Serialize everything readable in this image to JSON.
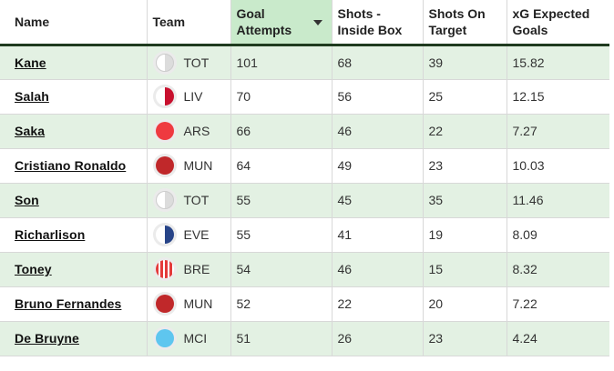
{
  "headers": {
    "name": "Name",
    "team": "Team",
    "goal_attempts": "Goal Attempts",
    "shots_inside_box": "Shots - Inside Box",
    "shots_on_target": "Shots On Target",
    "xg": "xG Expected Goals"
  },
  "sorted_column": "goal_attempts",
  "sort_direction": "descending",
  "rows": [
    {
      "name": "Kane",
      "team": "TOT",
      "badge": "tot-badge-icon",
      "badge_colors": [
        "#ffffff",
        "#dcdcdc"
      ],
      "goal_attempts": "101",
      "shots_inside_box": "68",
      "shots_on_target": "39",
      "xg": "15.82"
    },
    {
      "name": "Salah",
      "team": "LIV",
      "badge": "liv-badge-icon",
      "badge_colors": [
        "#ffffff",
        "#c8102e"
      ],
      "goal_attempts": "70",
      "shots_inside_box": "56",
      "shots_on_target": "25",
      "xg": "12.15"
    },
    {
      "name": "Saka",
      "team": "ARS",
      "badge": "ars-badge-icon",
      "badge_colors": [
        "#ef3a40"
      ],
      "goal_attempts": "66",
      "shots_inside_box": "46",
      "shots_on_target": "22",
      "xg": "7.27"
    },
    {
      "name": "Cristiano Ronaldo",
      "team": "MUN",
      "badge": "mun-badge-icon",
      "badge_colors": [
        "#c0282a"
      ],
      "goal_attempts": "64",
      "shots_inside_box": "49",
      "shots_on_target": "23",
      "xg": "10.03"
    },
    {
      "name": "Son",
      "team": "TOT",
      "badge": "tot-badge-icon",
      "badge_colors": [
        "#ffffff",
        "#dcdcdc"
      ],
      "goal_attempts": "55",
      "shots_inside_box": "45",
      "shots_on_target": "35",
      "xg": "11.46"
    },
    {
      "name": "Richarlison",
      "team": "EVE",
      "badge": "eve-badge-icon",
      "badge_colors": [
        "#ffffff",
        "#274488"
      ],
      "goal_attempts": "55",
      "shots_inside_box": "41",
      "shots_on_target": "19",
      "xg": "8.09"
    },
    {
      "name": "Toney",
      "team": "BRE",
      "badge": "bre-badge-icon",
      "badge_colors": [
        "#e43a3a",
        "#ffffff"
      ],
      "goal_attempts": "54",
      "shots_inside_box": "46",
      "shots_on_target": "15",
      "xg": "8.32"
    },
    {
      "name": "Bruno Fernandes",
      "team": "MUN",
      "badge": "mun-badge-icon",
      "badge_colors": [
        "#c0282a"
      ],
      "goal_attempts": "52",
      "shots_inside_box": "22",
      "shots_on_target": "20",
      "xg": "7.22"
    },
    {
      "name": "De Bruyne",
      "team": "MCI",
      "badge": "mci-badge-icon",
      "badge_colors": [
        "#5ec6ef"
      ],
      "goal_attempts": "51",
      "shots_inside_box": "26",
      "shots_on_target": "23",
      "xg": "4.24"
    }
  ]
}
